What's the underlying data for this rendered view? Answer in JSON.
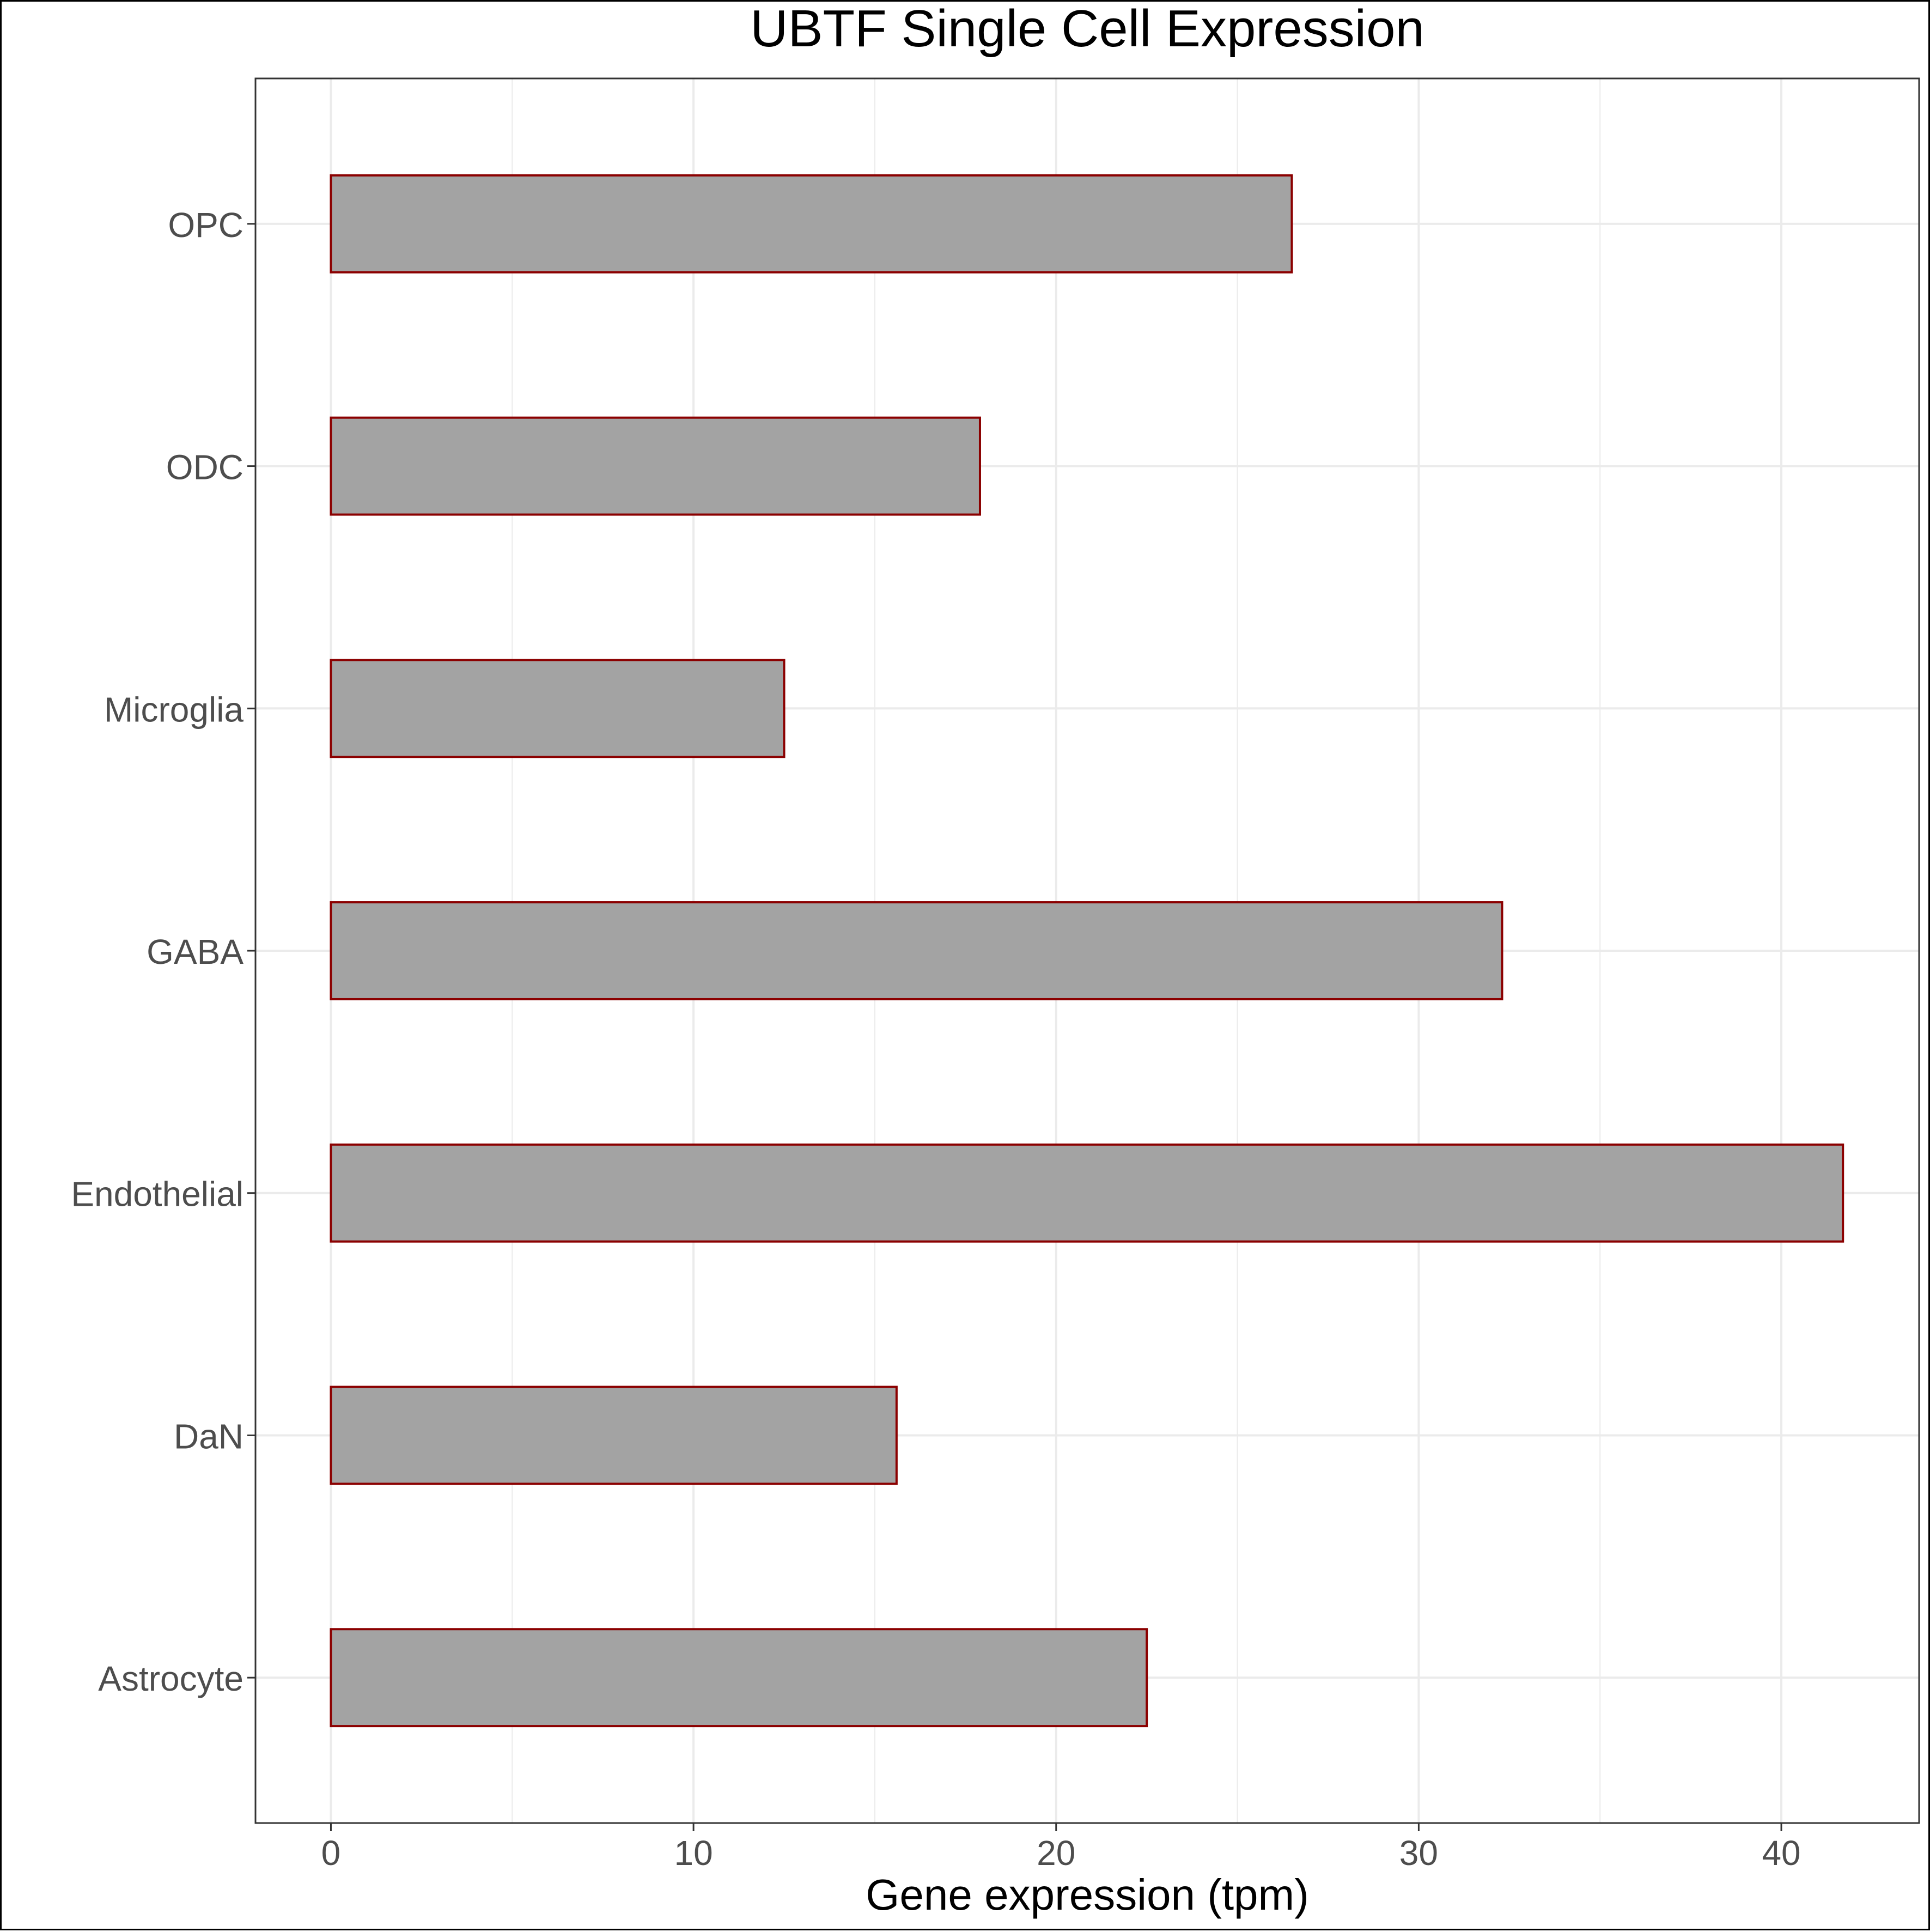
{
  "chart_data": {
    "type": "bar",
    "orientation": "horizontal",
    "title": "UBTF Single Cell Expression",
    "xlabel": "Gene expression (tpm)",
    "ylabel": "",
    "categories": [
      "Astrocyte",
      "DaN",
      "Endothelial",
      "GABA",
      "Microglia",
      "ODC",
      "OPC"
    ],
    "values": [
      22.5,
      15.6,
      41.7,
      32.3,
      12.5,
      17.9,
      26.5
    ],
    "xlim": [
      -2.08,
      43.8
    ],
    "xticks": [
      0,
      10,
      20,
      30,
      40
    ],
    "xtick_labels": [
      "0",
      "10",
      "20",
      "30",
      "40"
    ],
    "grid": true,
    "colors": {
      "bar_fill": "#a3a3a3",
      "bar_outline": "#8b0000",
      "grid": "#ebebeb",
      "axis_text": "#4d4d4d",
      "title_text": "#000000",
      "panel_border": "#333333"
    }
  }
}
